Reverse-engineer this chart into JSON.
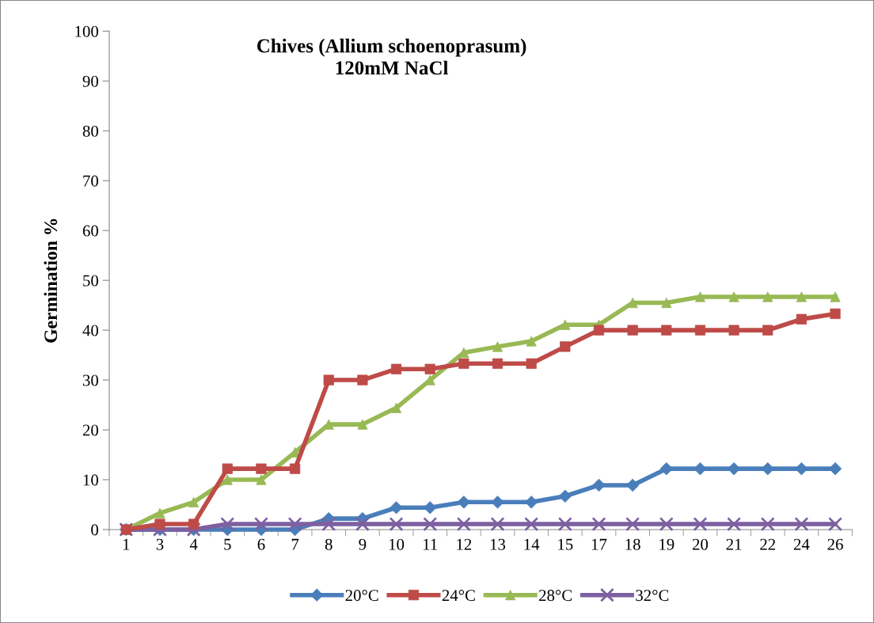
{
  "chart_data": {
    "type": "line",
    "title": "Chives (Allium schoenoprasum)\n120mM NaCl",
    "ylabel": "Germination %",
    "categories": [
      "1",
      "3",
      "4",
      "5",
      "6",
      "7",
      "8",
      "9",
      "10",
      "11",
      "12",
      "13",
      "14",
      "15",
      "17",
      "18",
      "19",
      "20",
      "21",
      "22",
      "24",
      "26"
    ],
    "series": [
      {
        "name": "20°C",
        "color": "#4a7ebb",
        "marker": "diamond",
        "values": [
          0,
          0,
          0,
          0,
          0,
          0,
          2.2,
          2.2,
          4.4,
          4.4,
          5.5,
          5.5,
          5.5,
          6.7,
          8.9,
          8.9,
          12.2,
          12.2,
          12.2,
          12.2,
          12.2,
          12.2
        ]
      },
      {
        "name": "24°C",
        "color": "#be4b48",
        "marker": "square",
        "values": [
          0,
          1.1,
          1.1,
          12.2,
          12.2,
          12.2,
          30,
          30,
          32.2,
          32.2,
          33.3,
          33.3,
          33.3,
          36.7,
          40,
          40,
          40,
          40,
          40,
          40,
          42.2,
          43.3
        ]
      },
      {
        "name": "28°C",
        "color": "#98b954",
        "marker": "triangle",
        "values": [
          0,
          3.3,
          5.5,
          10,
          10,
          15.5,
          21.1,
          21.1,
          24.4,
          30,
          35.5,
          36.7,
          37.8,
          41.1,
          41.1,
          45.5,
          45.5,
          46.7,
          46.7,
          46.7,
          46.7,
          46.7
        ]
      },
      {
        "name": "32°C",
        "color": "#7d60a0",
        "marker": "cross",
        "values": [
          0,
          0,
          0,
          1.1,
          1.1,
          1.1,
          1.1,
          1.1,
          1.1,
          1.1,
          1.1,
          1.1,
          1.1,
          1.1,
          1.1,
          1.1,
          1.1,
          1.1,
          1.1,
          1.1,
          1.1,
          1.1
        ]
      }
    ],
    "ylim": [
      0,
      100
    ],
    "yticks": [
      0,
      10,
      20,
      30,
      40,
      50,
      60,
      70,
      80,
      90,
      100
    ],
    "grid": false,
    "legend": "bottom",
    "line_style": "solid"
  }
}
